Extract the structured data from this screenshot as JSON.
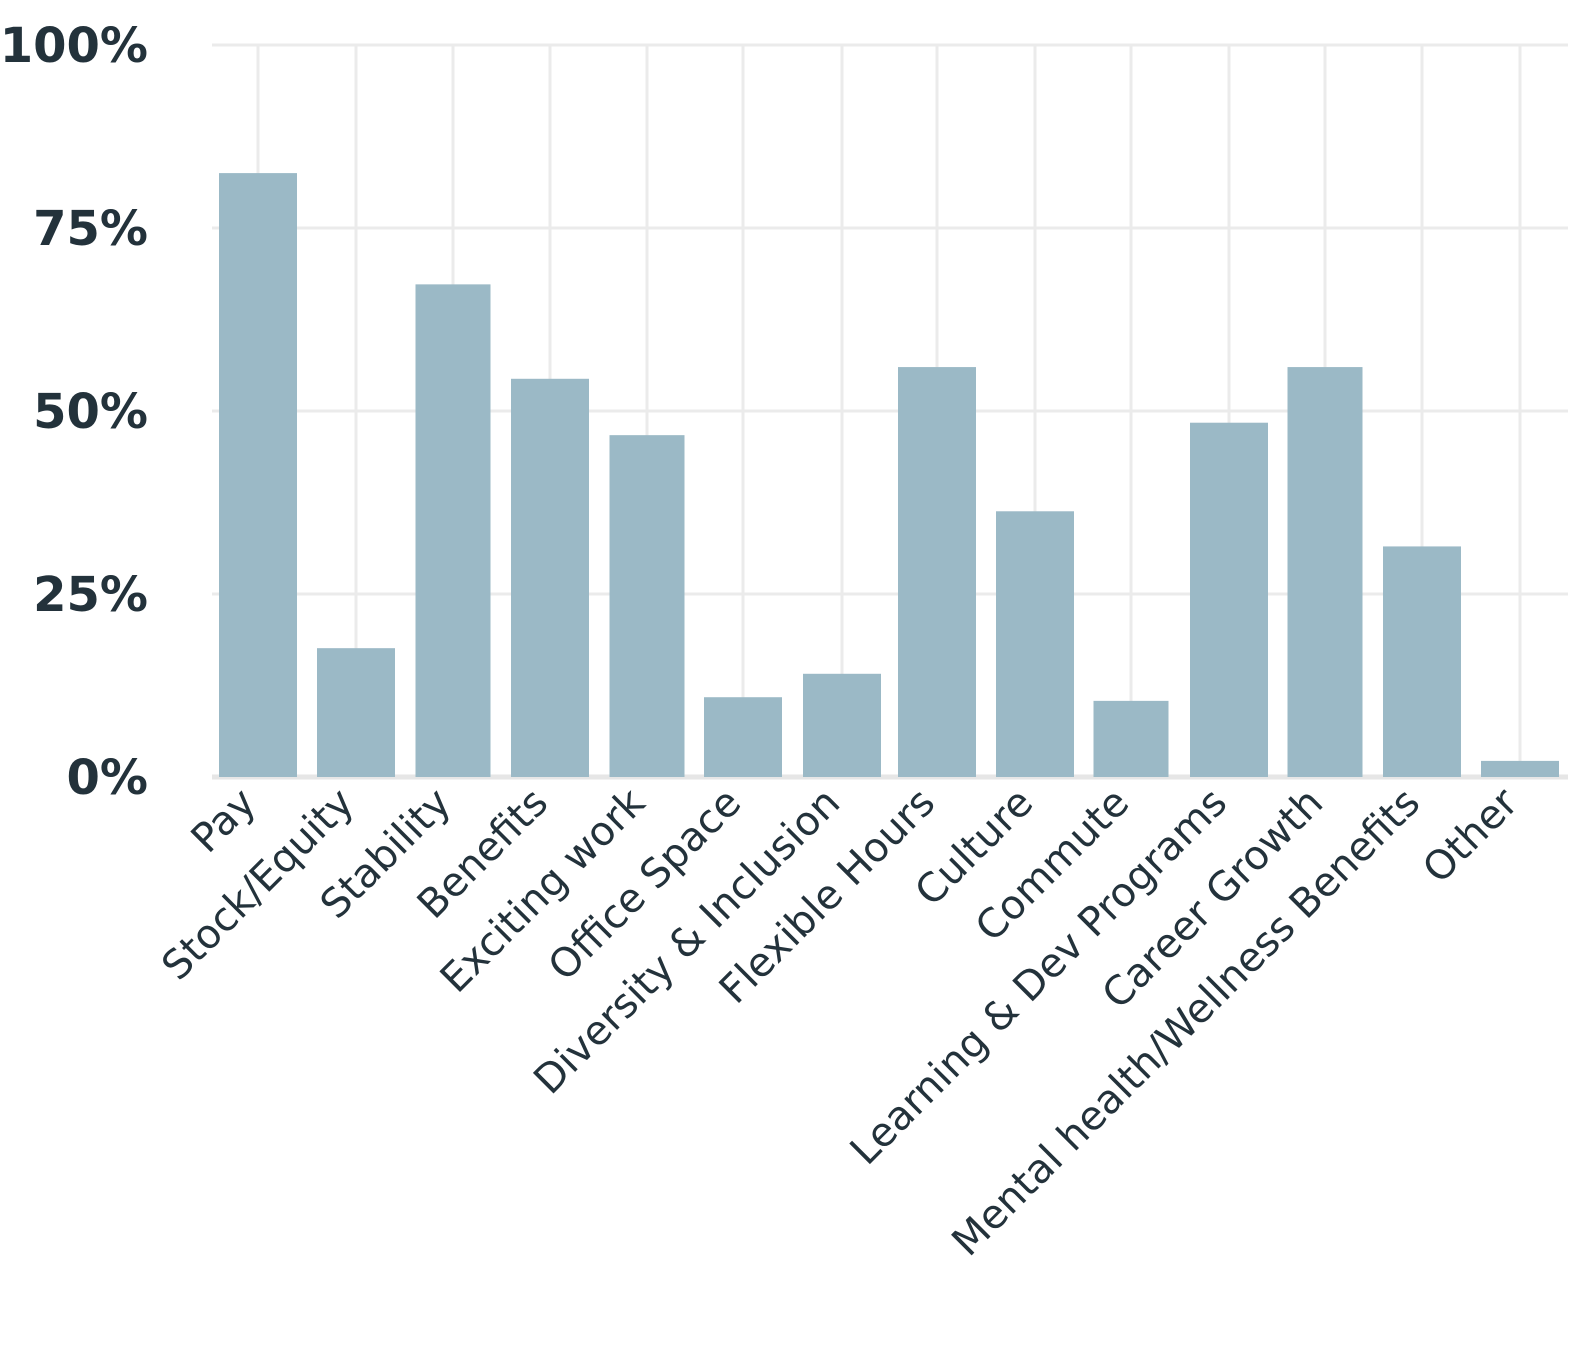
{
  "chart_data": {
    "type": "bar",
    "categories": [
      "Pay",
      "Stock/Equity",
      "Stability",
      "Benefits",
      "Exciting work",
      "Office Space",
      "Diversity & Inclusion",
      "Flexible Hours",
      "Culture",
      "Commute",
      "Learning & Dev Programs",
      "Career Growth",
      "Mental health/Wellness Benefits",
      "Other"
    ],
    "values": [
      82.5,
      17.6,
      67.3,
      54.4,
      46.7,
      10.9,
      14.1,
      56.0,
      36.3,
      10.4,
      48.4,
      56.0,
      31.5,
      2.2
    ],
    "yticks": [
      "0%",
      "25%",
      "50%",
      "75%",
      "100%"
    ],
    "ylim": [
      0,
      100
    ],
    "grid": true,
    "bar_color": "#9bb9c6"
  }
}
